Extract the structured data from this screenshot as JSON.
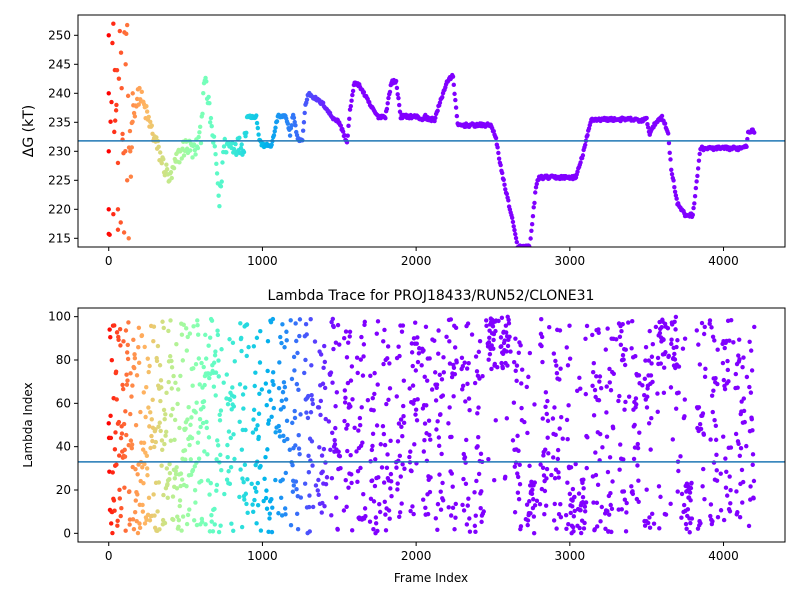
{
  "figure": {
    "background": "#ffffff"
  },
  "chart_data": [
    {
      "type": "scatter",
      "title": "",
      "xlabel": "",
      "ylabel": "ΔG (kT)",
      "xlim": [
        -200,
        4400
      ],
      "ylim": [
        213.5,
        253.5
      ],
      "xticks": [
        0,
        1000,
        2000,
        3000,
        4000
      ],
      "yticks": [
        215,
        220,
        225,
        230,
        235,
        240,
        245,
        250
      ],
      "reference_line": {
        "y": 231.8,
        "color": "#1f77b4"
      },
      "colormap": "rainbow (red at frame 0 → purple at frame ~1500+)",
      "x_max": 4200,
      "trace_keypoints": [
        [
          150,
          236
        ],
        [
          200,
          240
        ],
        [
          250,
          236
        ],
        [
          300,
          232
        ],
        [
          350,
          228
        ],
        [
          400,
          225
        ],
        [
          450,
          229
        ],
        [
          500,
          231
        ],
        [
          560,
          230
        ],
        [
          600,
          233
        ],
        [
          620,
          243
        ],
        [
          650,
          238
        ],
        [
          700,
          228
        ],
        [
          720,
          221
        ],
        [
          750,
          231
        ],
        [
          880,
          231
        ],
        [
          900,
          236
        ],
        [
          960,
          236
        ],
        [
          980,
          232
        ],
        [
          1000,
          231
        ],
        [
          1060,
          231
        ],
        [
          1100,
          236
        ],
        [
          1150,
          236
        ],
        [
          1180,
          233
        ],
        [
          1200,
          236.5
        ],
        [
          1230,
          232
        ],
        [
          1260,
          232
        ],
        [
          1280,
          238
        ],
        [
          1300,
          240
        ],
        [
          1350,
          239
        ],
        [
          1400,
          238
        ],
        [
          1450,
          236
        ],
        [
          1500,
          235
        ],
        [
          1550,
          231.5
        ],
        [
          1570,
          237
        ],
        [
          1600,
          242
        ],
        [
          1640,
          241
        ],
        [
          1700,
          238
        ],
        [
          1750,
          236
        ],
        [
          1780,
          236
        ],
        [
          1800,
          236
        ],
        [
          1840,
          242
        ],
        [
          1870,
          242
        ],
        [
          1900,
          236
        ],
        [
          2000,
          236
        ],
        [
          2040,
          235.5
        ],
        [
          2060,
          236
        ],
        [
          2080,
          235.5
        ],
        [
          2120,
          235.5
        ],
        [
          2200,
          242
        ],
        [
          2240,
          243
        ],
        [
          2270,
          234.5
        ],
        [
          2490,
          234.5
        ],
        [
          2520,
          232
        ],
        [
          2560,
          226
        ],
        [
          2620,
          219
        ],
        [
          2660,
          213.5
        ],
        [
          2740,
          213.5
        ],
        [
          2780,
          224
        ],
        [
          2800,
          225.5
        ],
        [
          3040,
          225.5
        ],
        [
          3080,
          229
        ],
        [
          3140,
          235.5
        ],
        [
          3200,
          235.5
        ],
        [
          3400,
          235.5
        ],
        [
          3460,
          235.3
        ],
        [
          3500,
          235.5
        ],
        [
          3520,
          233
        ],
        [
          3560,
          235
        ],
        [
          3600,
          236
        ],
        [
          3640,
          233
        ],
        [
          3660,
          227
        ],
        [
          3700,
          221
        ],
        [
          3750,
          219
        ],
        [
          3800,
          219
        ],
        [
          3850,
          230.5
        ],
        [
          4100,
          230.5
        ],
        [
          4150,
          231
        ],
        [
          4160,
          233.5
        ],
        [
          4200,
          233.5
        ]
      ],
      "early_scatter_keypoints": [
        [
          0,
          250
        ],
        [
          0,
          240
        ],
        [
          0,
          230
        ],
        [
          0,
          220
        ],
        [
          30,
          252
        ],
        [
          40,
          244
        ],
        [
          50,
          238
        ],
        [
          60,
          228
        ],
        [
          60,
          220
        ],
        [
          80,
          247
        ],
        [
          90,
          233
        ],
        [
          100,
          216
        ],
        [
          110,
          245
        ],
        [
          120,
          225
        ],
        [
          130,
          215
        ],
        [
          140,
          230
        ]
      ]
    },
    {
      "type": "scatter",
      "title": "Lambda Trace for PROJ18433/RUN52/CLONE31",
      "xlabel": "Frame Index",
      "ylabel": "Lambda Index",
      "xlim": [
        -200,
        4400
      ],
      "ylim": [
        -4,
        104
      ],
      "xticks": [
        0,
        1000,
        2000,
        3000,
        4000
      ],
      "yticks": [
        0,
        20,
        40,
        60,
        80,
        100
      ],
      "reference_line": {
        "y": 33,
        "color": "#1f77b4"
      },
      "colormap": "rainbow (red at frame 0 → purple at frame ~1500+)",
      "x_max": 4200,
      "note_bands": [
        {
          "x": [
            2450,
            2650
          ],
          "lambda_range": [
            75,
            100
          ]
        },
        {
          "x": [
            3550,
            3700
          ],
          "lambda_range": [
            75,
            100
          ]
        },
        {
          "x": [
            2700,
            2800
          ],
          "lambda_range": [
            0,
            25
          ]
        },
        {
          "x": [
            3000,
            3100
          ],
          "lambda_range": [
            0,
            25
          ]
        },
        {
          "x": [
            3750,
            3800
          ],
          "lambda_range": [
            0,
            25
          ]
        }
      ]
    }
  ]
}
